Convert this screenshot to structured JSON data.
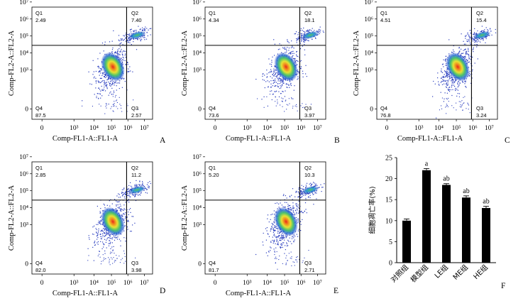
{
  "chart_data": [
    {
      "type": "scatter",
      "panel": "A",
      "xlabel": "Comp-FL1-A::FL1-A",
      "ylabel": "Comp-FL2-A::FL2-A",
      "x_ticks": [
        "0",
        "10³",
        "10⁴",
        "10⁵",
        "10⁶",
        "10⁷"
      ],
      "y_ticks": [
        "0",
        "10³",
        "10⁴",
        "10⁵",
        "10⁶",
        "10⁷"
      ],
      "quadrants": {
        "Q1": "2.49",
        "Q2": "7.40",
        "Q3": "2.57",
        "Q4": "87.5"
      }
    },
    {
      "type": "scatter",
      "panel": "B",
      "xlabel": "Comp-FL1-A::FL1-A",
      "ylabel": "Comp-FL2-A::FL2-A",
      "x_ticks": [
        "0",
        "10³",
        "10⁴",
        "10⁵",
        "10⁶",
        "10⁷"
      ],
      "y_ticks": [
        "0",
        "10³",
        "10⁴",
        "10⁵",
        "10⁶",
        "10⁷"
      ],
      "quadrants": {
        "Q1": "4.34",
        "Q2": "18.1",
        "Q3": "3.97",
        "Q4": "73.6"
      }
    },
    {
      "type": "scatter",
      "panel": "C",
      "xlabel": "Comp-FL1-A::FL1-A",
      "ylabel": "Comp-FL2-A::FL2-A",
      "x_ticks": [
        "0",
        "10³",
        "10⁴",
        "10⁵",
        "10⁶",
        "10⁷"
      ],
      "y_ticks": [
        "0",
        "10³",
        "10⁴",
        "10⁵",
        "10⁶",
        "10⁷"
      ],
      "quadrants": {
        "Q1": "4.51",
        "Q2": "15.4",
        "Q3": "3.24",
        "Q4": "76.8"
      }
    },
    {
      "type": "scatter",
      "panel": "D",
      "xlabel": "Comp-FL1-A::FL1-A",
      "ylabel": "Comp-FL2-A::FL2-A",
      "x_ticks": [
        "0",
        "10³",
        "10⁴",
        "10⁵",
        "10⁶",
        "10⁷"
      ],
      "y_ticks": [
        "0",
        "10³",
        "10⁴",
        "10⁵",
        "10⁶",
        "10⁷"
      ],
      "quadrants": {
        "Q1": "2.85",
        "Q2": "11.2",
        "Q3": "3.98",
        "Q4": "82.0"
      }
    },
    {
      "type": "scatter",
      "panel": "E",
      "xlabel": "Comp-FL1-A::FL1-A",
      "ylabel": "Comp-FL2-A::FL2-A",
      "x_ticks": [
        "0",
        "10³",
        "10⁴",
        "10⁵",
        "10⁶",
        "10⁷"
      ],
      "y_ticks": [
        "0",
        "10³",
        "10⁴",
        "10⁵",
        "10⁶",
        "10⁷"
      ],
      "quadrants": {
        "Q1": "5.20",
        "Q2": "10.3",
        "Q3": "2.71",
        "Q4": "81.7"
      }
    },
    {
      "type": "bar",
      "panel": "F",
      "ylabel": "细胞凋亡率(%)",
      "ylim": [
        0,
        25
      ],
      "y_ticks": [
        0,
        5,
        10,
        15,
        20,
        25
      ],
      "categories": [
        "对照组",
        "模型组",
        "LE组",
        "ME组",
        "HE组"
      ],
      "values": [
        10.0,
        22.0,
        18.5,
        15.5,
        13.0
      ],
      "errors": [
        0.4,
        0.4,
        0.3,
        0.4,
        0.4
      ],
      "annotations": [
        "",
        "a",
        "ab",
        "ab",
        "ab"
      ]
    }
  ]
}
